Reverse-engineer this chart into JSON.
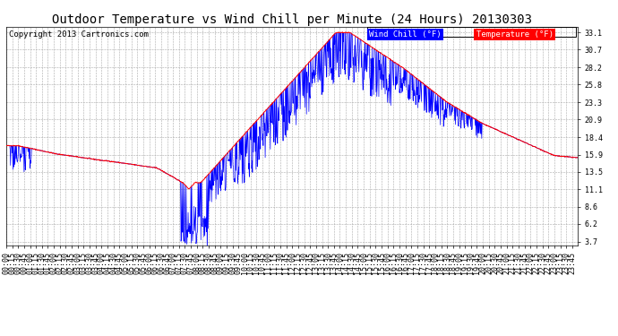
{
  "title": "Outdoor Temperature vs Wind Chill per Minute (24 Hours) 20130303",
  "copyright": "Copyright 2013 Cartronics.com",
  "legend_wind_chill": "Wind Chill (°F)",
  "legend_temperature": "Temperature (°F)",
  "wind_chill_color": "#0000ff",
  "temperature_color": "#ff0000",
  "legend_wind_bg": "#0000ff",
  "legend_temp_bg": "#ff0000",
  "background_color": "#ffffff",
  "grid_color": "#aaaaaa",
  "yticks": [
    3.7,
    6.2,
    8.6,
    11.1,
    13.5,
    15.9,
    18.4,
    20.9,
    23.3,
    25.8,
    28.2,
    30.7,
    33.1
  ],
  "ymin": 3.7,
  "ymax": 33.1,
  "title_fontsize": 10,
  "copyright_fontsize": 6.5,
  "tick_fontsize": 6,
  "legend_fontsize": 6.5
}
